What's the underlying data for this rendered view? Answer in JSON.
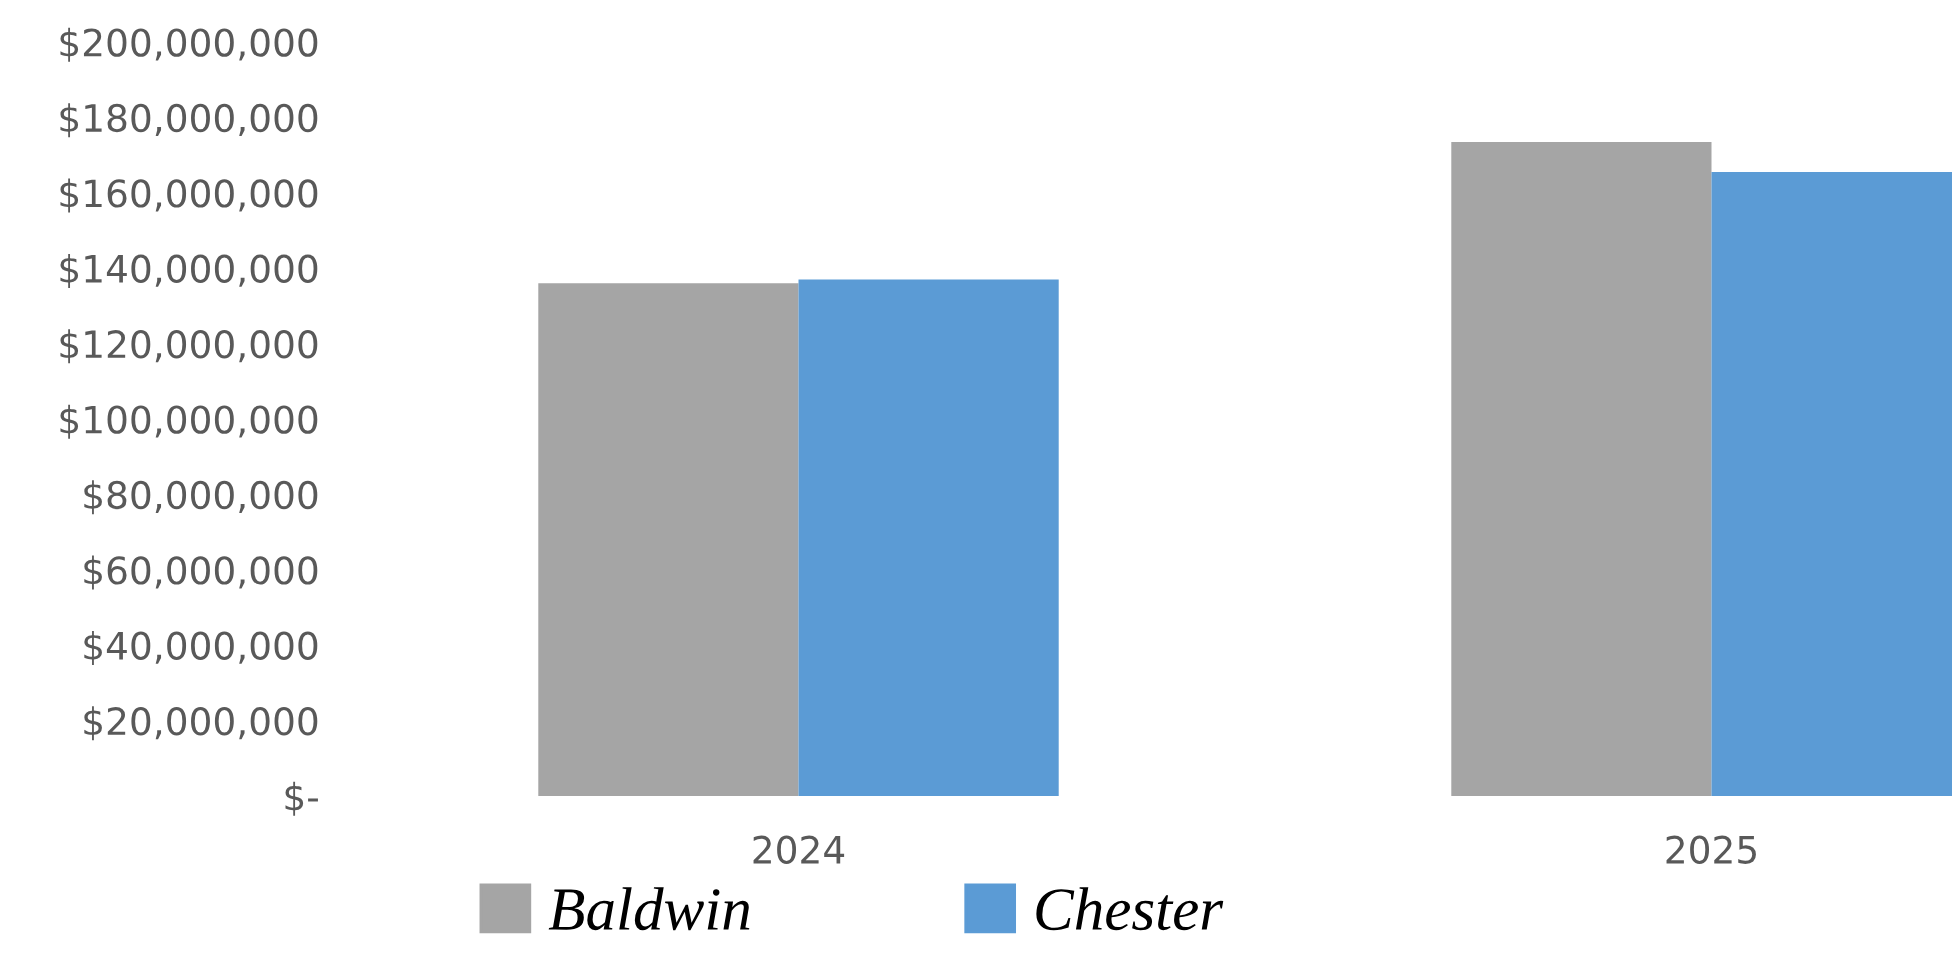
{
  "chart_data": {
    "type": "bar",
    "categories": [
      "2024",
      "2025"
    ],
    "series": [
      {
        "name": "Baldwin",
        "color": "#a5a5a5",
        "values": [
          136000000,
          173500000
        ]
      },
      {
        "name": "Chester",
        "color": "#5b9bd5",
        "values": [
          137000000,
          165500000
        ]
      }
    ],
    "ylim": [
      0,
      200000000
    ],
    "yticks": [
      {
        "value": 0,
        "label": "$-"
      },
      {
        "value": 20000000,
        "label": "$20,000,000"
      },
      {
        "value": 40000000,
        "label": "$40,000,000"
      },
      {
        "value": 60000000,
        "label": "$60,000,000"
      },
      {
        "value": 80000000,
        "label": "$80,000,000"
      },
      {
        "value": 100000000,
        "label": "$100,000,000"
      },
      {
        "value": 120000000,
        "label": "$120,000,000"
      },
      {
        "value": 140000000,
        "label": "$140,000,000"
      },
      {
        "value": 160000000,
        "label": "$160,000,000"
      },
      {
        "value": 180000000,
        "label": "$180,000,000"
      },
      {
        "value": 200000000,
        "label": "$200,000,000"
      }
    ],
    "legend": "bottom"
  }
}
